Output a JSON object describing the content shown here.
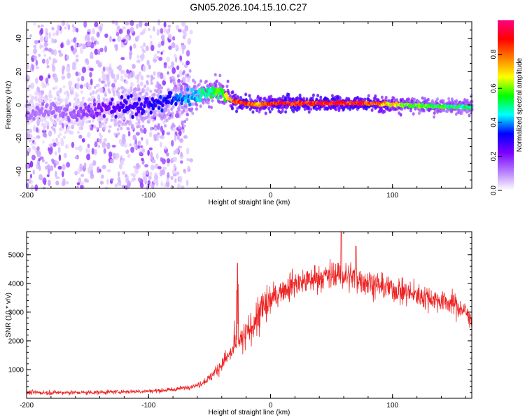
{
  "chart_data": [
    {
      "type": "heatmap",
      "title": "GN05.2026.104.15.10.C27",
      "xlabel": "Height of straight line (km)",
      "ylabel": "Frequency (Hz)",
      "xlim": [
        -200,
        165
      ],
      "ylim": [
        -50,
        50
      ],
      "xticks": [
        -200,
        -100,
        0,
        100
      ],
      "yticks": [
        -40,
        -20,
        0,
        20,
        40
      ],
      "colorbar": {
        "label": "Normalized spectral amplitude",
        "range": [
          0,
          1
        ],
        "ticks": [
          "0.0",
          "0.2",
          "0.4",
          "0.6",
          "0.8"
        ],
        "colormap": [
          "#ffffff",
          "#b57cff",
          "#7a00ff",
          "#0000ff",
          "#00ffff",
          "#00ff00",
          "#ffff00",
          "#ff8000",
          "#ff0000",
          "#ff0080"
        ]
      },
      "ridge": {
        "x": [
          -200,
          -180,
          -160,
          -140,
          -120,
          -100,
          -80,
          -60,
          -45,
          -38,
          -30,
          -20,
          -10,
          0,
          20,
          50,
          80,
          110,
          140,
          165
        ],
        "frequency_hz": [
          -5,
          -3,
          -4,
          -3,
          -1,
          0,
          3,
          6,
          9,
          6,
          2,
          1,
          0,
          1,
          1,
          1,
          1,
          0,
          -1,
          -1
        ],
        "amplitude": [
          0.12,
          0.12,
          0.14,
          0.2,
          0.28,
          0.3,
          0.35,
          0.45,
          0.55,
          0.6,
          0.85,
          0.9,
          0.75,
          0.9,
          0.92,
          0.93,
          0.9,
          0.6,
          0.55,
          0.5
        ]
      }
    },
    {
      "type": "line",
      "xlabel": "Height of straight line (km)",
      "ylabel": "SNR (10 * v/v)",
      "xlim": [
        -200,
        165
      ],
      "ylim": [
        0,
        5800
      ],
      "xticks": [
        -200,
        -100,
        0,
        100
      ],
      "yticks": [
        1000,
        2000,
        3000,
        4000,
        5000
      ],
      "color": "#ee2222",
      "envelope": {
        "x": [
          -200,
          -150,
          -100,
          -80,
          -60,
          -50,
          -40,
          -30,
          -20,
          -10,
          0,
          10,
          20,
          40,
          55,
          70,
          90,
          110,
          130,
          150,
          160,
          165
        ],
        "snr": [
          200,
          200,
          250,
          300,
          450,
          700,
          1200,
          1700,
          2200,
          2900,
          3400,
          3800,
          4000,
          4200,
          4300,
          4200,
          3900,
          3700,
          3500,
          3300,
          3000,
          2700
        ]
      },
      "peaks": [
        {
          "x": -27,
          "snr": 4700
        },
        {
          "x": 58,
          "snr": 5800
        },
        {
          "x": 70,
          "snr": 5300
        }
      ]
    }
  ]
}
